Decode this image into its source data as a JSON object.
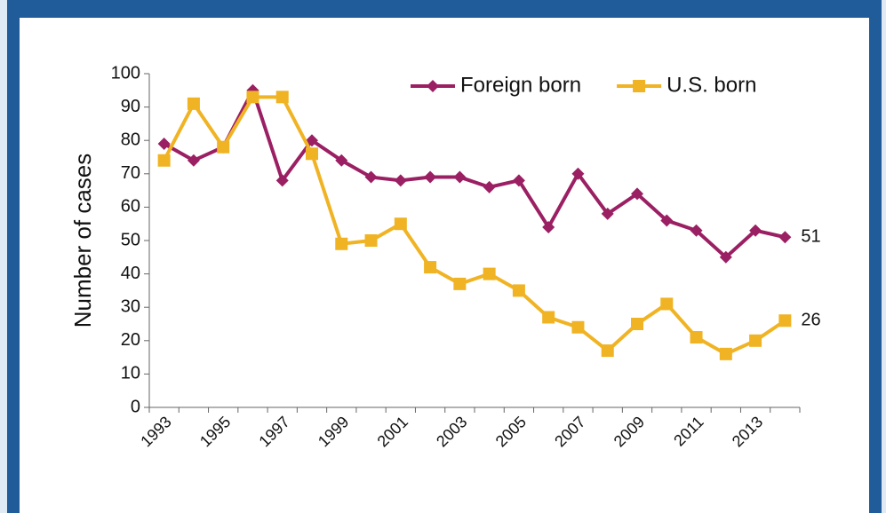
{
  "chart_data": {
    "type": "line",
    "ylabel": "Number of cases",
    "categories": [
      "1993",
      null,
      "1995",
      null,
      "1997",
      null,
      "1999",
      null,
      "2001",
      null,
      "2003",
      null,
      "2005",
      null,
      "2007",
      null,
      "2009",
      null,
      "2011",
      null,
      "2013",
      null
    ],
    "series": [
      {
        "name": "Foreign born",
        "color": "#9b1f63",
        "marker": "diamond",
        "values": [
          79,
          74,
          78,
          95,
          68,
          80,
          74,
          69,
          68,
          69,
          69,
          66,
          68,
          54,
          70,
          58,
          64,
          56,
          53,
          45,
          53,
          51
        ]
      },
      {
        "name": "U.S. born",
        "color": "#f0b323",
        "marker": "square",
        "values": [
          74,
          91,
          78,
          93,
          93,
          76,
          49,
          50,
          55,
          42,
          37,
          40,
          35,
          27,
          24,
          17,
          25,
          31,
          21,
          16,
          20,
          26
        ]
      }
    ],
    "ylim": [
      0,
      100
    ],
    "yticks": [
      0,
      10,
      20,
      30,
      40,
      50,
      60,
      70,
      80,
      90,
      100
    ],
    "legend": "top-right",
    "end_labels": true
  }
}
